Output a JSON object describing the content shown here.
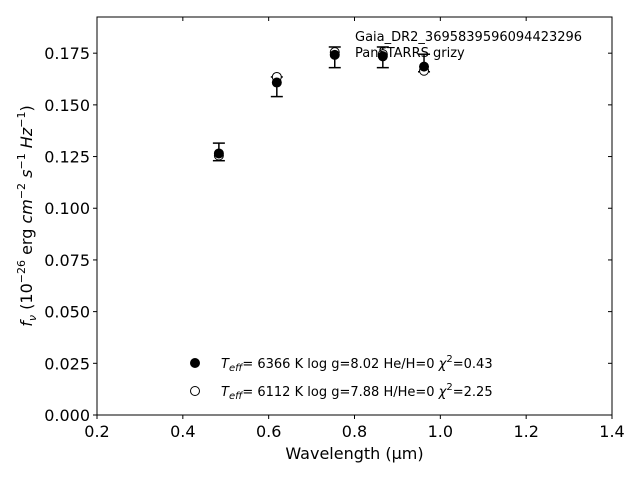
{
  "chart_data": {
    "type": "scatter",
    "xlabel": "Wavelength (μm)",
    "ylabel": "f_ν (10^-26 erg cm^-2 s^-1 Hz^-1)",
    "xlim": [
      0.2,
      1.4
    ],
    "ylim": [
      0.0,
      0.1925
    ],
    "xticks": [
      0.2,
      0.4,
      0.6,
      0.8,
      1.0,
      1.2,
      1.4
    ],
    "xtick_labels": [
      "0.2",
      "0.4",
      "0.6",
      "0.8",
      "1.0",
      "1.2",
      "1.4"
    ],
    "yticks": [
      0.0,
      0.025,
      0.05,
      0.075,
      0.1,
      0.125,
      0.15,
      0.175
    ],
    "ytick_labels": [
      "0.000",
      "0.025",
      "0.050",
      "0.075",
      "0.100",
      "0.125",
      "0.150",
      "0.175"
    ],
    "grid": false,
    "annotation": {
      "line1": "Gaia_DR2_3695839596094423296",
      "line2": "PanSTARRS grizy"
    },
    "observed": {
      "x": [
        0.484,
        0.619,
        0.754,
        0.866,
        0.962
      ],
      "y": [
        0.1265,
        0.1615,
        0.1735,
        0.173,
        0.168
      ],
      "yerr_low": [
        0.0035,
        0.0075,
        0.0055,
        0.005,
        0.002
      ],
      "yerr_high": [
        0.005,
        0.002,
        0.0045,
        0.005,
        0.0065
      ]
    },
    "series": [
      {
        "marker": "filled",
        "label": {
          "teff": "6366 K",
          "logg": "log g=8.02",
          "comp": "He/H=0",
          "chi2": "=0.43"
        },
        "x": [
          0.484,
          0.619,
          0.754,
          0.866,
          0.962
        ],
        "y": [
          0.1265,
          0.1608,
          0.1742,
          0.1735,
          0.1685
        ]
      },
      {
        "marker": "open",
        "label": {
          "teff": "6112 K",
          "logg": "log g=7.88",
          "comp": "H/He=0",
          "chi2": "=2.25"
        },
        "x": [
          0.484,
          0.619,
          0.754,
          0.866,
          0.962
        ],
        "y": [
          0.1255,
          0.1635,
          0.1755,
          0.1745,
          0.1665
        ]
      }
    ]
  }
}
